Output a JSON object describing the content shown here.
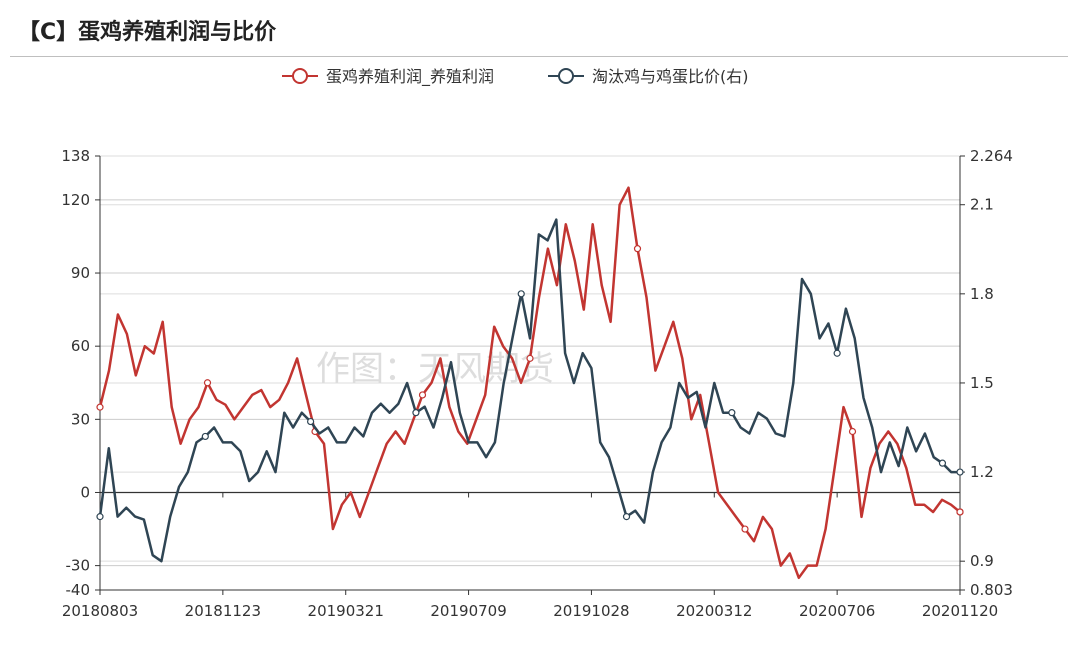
{
  "title": "【C】蛋鸡养殖利润与比价",
  "watermark": "作图：天风期货",
  "chart_data": {
    "type": "line",
    "x_ticks": [
      "20180803",
      "20181123",
      "20190321",
      "20190709",
      "20191028",
      "20200312",
      "20200706",
      "20201120"
    ],
    "y_left": {
      "ticks": [
        -40,
        -30,
        0,
        30,
        60,
        90,
        120,
        138
      ],
      "range": [
        -40,
        138
      ]
    },
    "y_right": {
      "ticks": [
        0.803,
        0.9,
        1.2,
        1.5,
        1.8,
        2.1,
        2.264
      ],
      "range": [
        0.803,
        2.264
      ]
    },
    "grid": true,
    "legend_position": "top-center",
    "series": [
      {
        "name": "蛋鸡养殖利润_养殖利润",
        "axis": "left",
        "color": "#c23531",
        "values": [
          35,
          50,
          73,
          65,
          48,
          60,
          57,
          70,
          35,
          20,
          30,
          35,
          45,
          38,
          36,
          30,
          35,
          40,
          42,
          35,
          38,
          45,
          55,
          40,
          25,
          20,
          -15,
          -5,
          0,
          -10,
          0,
          10,
          20,
          25,
          20,
          30,
          40,
          45,
          55,
          35,
          25,
          20,
          30,
          40,
          68,
          60,
          55,
          45,
          55,
          80,
          100,
          85,
          110,
          95,
          75,
          110,
          85,
          70,
          118,
          125,
          100,
          80,
          50,
          60,
          70,
          55,
          30,
          40,
          20,
          0,
          -5,
          -10,
          -15,
          -20,
          -10,
          -15,
          -30,
          -25,
          -35,
          -30,
          -30,
          -15,
          10,
          35,
          25,
          -10,
          10,
          20,
          25,
          20,
          10,
          -5,
          -5,
          -8,
          -3,
          -5,
          -8
        ]
      },
      {
        "name": "淘汰鸡与鸡蛋比价(右)",
        "axis": "right",
        "color": "#2f4554",
        "values": [
          1.05,
          1.28,
          1.05,
          1.08,
          1.05,
          1.04,
          0.92,
          0.9,
          1.05,
          1.15,
          1.2,
          1.3,
          1.32,
          1.35,
          1.3,
          1.3,
          1.27,
          1.17,
          1.2,
          1.27,
          1.2,
          1.4,
          1.35,
          1.4,
          1.37,
          1.33,
          1.35,
          1.3,
          1.3,
          1.35,
          1.32,
          1.4,
          1.43,
          1.4,
          1.43,
          1.5,
          1.4,
          1.42,
          1.35,
          1.45,
          1.57,
          1.4,
          1.3,
          1.3,
          1.25,
          1.3,
          1.5,
          1.65,
          1.8,
          1.65,
          2.0,
          1.98,
          2.05,
          1.6,
          1.5,
          1.6,
          1.55,
          1.3,
          1.25,
          1.15,
          1.05,
          1.07,
          1.03,
          1.2,
          1.3,
          1.35,
          1.5,
          1.45,
          1.47,
          1.35,
          1.5,
          1.4,
          1.4,
          1.35,
          1.33,
          1.4,
          1.38,
          1.33,
          1.32,
          1.5,
          1.85,
          1.8,
          1.65,
          1.7,
          1.6,
          1.75,
          1.65,
          1.45,
          1.35,
          1.2,
          1.3,
          1.22,
          1.35,
          1.27,
          1.33,
          1.25,
          1.23,
          1.2,
          1.2
        ]
      }
    ]
  }
}
